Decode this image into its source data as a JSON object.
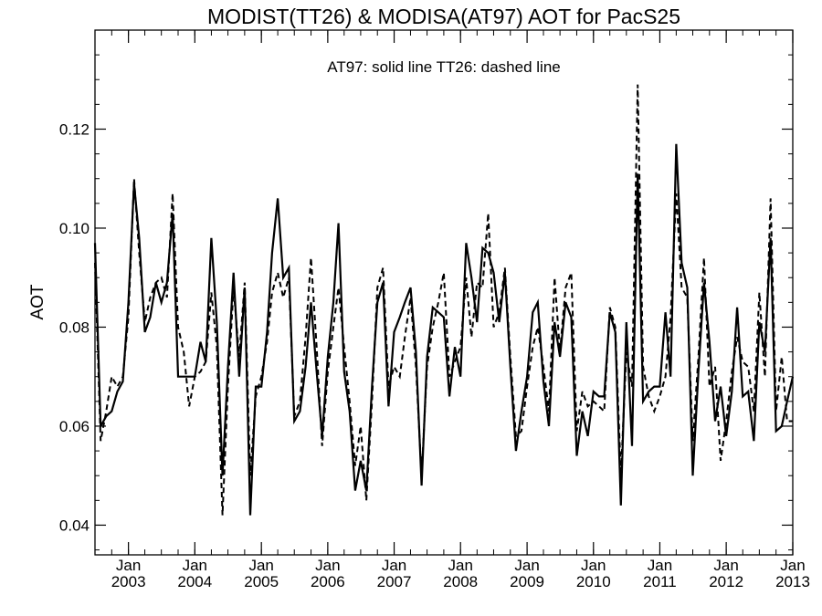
{
  "chart_data": {
    "type": "line",
    "title": "MODIST(TT26) & MODISA(AT97)  AOT for PacS25",
    "annotation": "AT97: solid line   TT26: dashed line",
    "xlabel": "",
    "ylabel": "AOT",
    "xlim": [
      "2002-07-01",
      "2013-01-01"
    ],
    "ylim": [
      0.034,
      0.14
    ],
    "grid": false,
    "y_ticks": [
      "0.04",
      "0.06",
      "0.08",
      "0.10",
      "0.12"
    ],
    "x_ticks": [
      {
        "month": "Jan",
        "year": "2003",
        "date": "2003-01-01"
      },
      {
        "month": "Jan",
        "year": "2004",
        "date": "2004-01-01"
      },
      {
        "month": "Jan",
        "year": "2005",
        "date": "2005-01-01"
      },
      {
        "month": "Jan",
        "year": "2006",
        "date": "2006-01-01"
      },
      {
        "month": "Jan",
        "year": "2007",
        "date": "2007-01-01"
      },
      {
        "month": "Jan",
        "year": "2008",
        "date": "2008-01-01"
      },
      {
        "month": "Jan",
        "year": "2009",
        "date": "2009-01-01"
      },
      {
        "month": "Jan",
        "year": "2010",
        "date": "2010-01-01"
      },
      {
        "month": "Jan",
        "year": "2011",
        "date": "2011-01-01"
      },
      {
        "month": "Jan",
        "year": "2012",
        "date": "2012-01-01"
      },
      {
        "month": "Jan",
        "year": "2013",
        "date": "2013-01-01"
      }
    ],
    "series": [
      {
        "style": "solid",
        "color": "#000000",
        "points": [
          [
            "2002-07-01",
            0.097
          ],
          [
            "2002-08-01",
            0.06
          ],
          [
            "2002-09-01",
            0.062
          ],
          [
            "2002-10-01",
            0.063
          ],
          [
            "2002-11-01",
            0.067
          ],
          [
            "2002-12-01",
            0.069
          ],
          [
            "2003-01-01",
            0.085
          ],
          [
            "2003-02-01",
            0.109
          ],
          [
            "2003-03-01",
            0.098
          ],
          [
            "2003-04-01",
            0.079
          ],
          [
            "2003-05-01",
            0.082
          ],
          [
            "2003-06-01",
            0.089
          ],
          [
            "2003-07-01",
            0.085
          ],
          [
            "2003-08-01",
            0.089
          ],
          [
            "2003-09-01",
            0.103
          ],
          [
            "2003-10-01",
            0.07
          ],
          [
            "2003-11-01",
            0.07
          ],
          [
            "2003-12-01",
            0.07
          ],
          [
            "2004-01-01",
            0.07
          ],
          [
            "2004-02-01",
            0.077
          ],
          [
            "2004-03-01",
            0.073
          ],
          [
            "2004-04-01",
            0.098
          ],
          [
            "2004-05-01",
            0.081
          ],
          [
            "2004-06-01",
            0.05
          ],
          [
            "2004-07-01",
            0.072
          ],
          [
            "2004-08-01",
            0.091
          ],
          [
            "2004-09-01",
            0.07
          ],
          [
            "2004-10-01",
            0.088
          ],
          [
            "2004-11-01",
            0.042
          ],
          [
            "2004-12-01",
            0.068
          ],
          [
            "2005-01-01",
            0.068
          ],
          [
            "2005-02-01",
            0.079
          ],
          [
            "2005-03-01",
            0.095
          ],
          [
            "2005-04-01",
            0.106
          ],
          [
            "2005-05-01",
            0.09
          ],
          [
            "2005-06-01",
            0.092
          ],
          [
            "2005-07-01",
            0.061
          ],
          [
            "2005-08-01",
            0.063
          ],
          [
            "2005-09-01",
            0.072
          ],
          [
            "2005-10-01",
            0.085
          ],
          [
            "2005-11-01",
            0.071
          ],
          [
            "2005-12-01",
            0.058
          ],
          [
            "2006-01-01",
            0.074
          ],
          [
            "2006-02-01",
            0.085
          ],
          [
            "2006-03-01",
            0.101
          ],
          [
            "2006-04-01",
            0.071
          ],
          [
            "2006-05-01",
            0.063
          ],
          [
            "2006-06-01",
            0.047
          ],
          [
            "2006-07-01",
            0.053
          ],
          [
            "2006-08-01",
            0.047
          ],
          [
            "2006-09-01",
            0.068
          ],
          [
            "2006-10-01",
            0.085
          ],
          [
            "2006-11-01",
            0.089
          ],
          [
            "2006-12-01",
            0.064
          ],
          [
            "2007-01-01",
            0.079
          ],
          [
            "2007-02-01",
            0.082
          ],
          [
            "2007-03-01",
            0.085
          ],
          [
            "2007-04-01",
            0.088
          ],
          [
            "2007-05-01",
            0.075
          ],
          [
            "2007-06-01",
            0.048
          ],
          [
            "2007-07-01",
            0.074
          ],
          [
            "2007-08-01",
            0.084
          ],
          [
            "2007-09-01",
            0.083
          ],
          [
            "2007-10-01",
            0.082
          ],
          [
            "2007-11-01",
            0.066
          ],
          [
            "2007-12-01",
            0.076
          ],
          [
            "2008-01-01",
            0.07
          ],
          [
            "2008-02-01",
            0.097
          ],
          [
            "2008-03-01",
            0.09
          ],
          [
            "2008-04-01",
            0.081
          ],
          [
            "2008-05-01",
            0.096
          ],
          [
            "2008-06-01",
            0.095
          ],
          [
            "2008-07-01",
            0.091
          ],
          [
            "2008-08-01",
            0.081
          ],
          [
            "2008-09-01",
            0.091
          ],
          [
            "2008-10-01",
            0.072
          ],
          [
            "2008-11-01",
            0.055
          ],
          [
            "2008-12-01",
            0.063
          ],
          [
            "2009-01-01",
            0.07
          ],
          [
            "2009-02-01",
            0.083
          ],
          [
            "2009-03-01",
            0.085
          ],
          [
            "2009-04-01",
            0.069
          ],
          [
            "2009-05-01",
            0.06
          ],
          [
            "2009-06-01",
            0.081
          ],
          [
            "2009-07-01",
            0.074
          ],
          [
            "2009-08-01",
            0.085
          ],
          [
            "2009-09-01",
            0.082
          ],
          [
            "2009-10-01",
            0.054
          ],
          [
            "2009-11-01",
            0.063
          ],
          [
            "2009-12-01",
            0.058
          ],
          [
            "2010-01-01",
            0.067
          ],
          [
            "2010-02-01",
            0.066
          ],
          [
            "2010-03-01",
            0.066
          ],
          [
            "2010-04-01",
            0.083
          ],
          [
            "2010-05-01",
            0.079
          ],
          [
            "2010-06-01",
            0.044
          ],
          [
            "2010-07-01",
            0.081
          ],
          [
            "2010-08-01",
            0.056
          ],
          [
            "2010-09-01",
            0.111
          ],
          [
            "2010-10-01",
            0.065
          ],
          [
            "2010-11-01",
            0.067
          ],
          [
            "2010-12-01",
            0.068
          ],
          [
            "2011-01-01",
            0.068
          ],
          [
            "2011-02-01",
            0.083
          ],
          [
            "2011-03-01",
            0.07
          ],
          [
            "2011-04-01",
            0.117
          ],
          [
            "2011-05-01",
            0.093
          ],
          [
            "2011-06-01",
            0.088
          ],
          [
            "2011-07-01",
            0.05
          ],
          [
            "2011-08-01",
            0.071
          ],
          [
            "2011-09-01",
            0.089
          ],
          [
            "2011-10-01",
            0.077
          ],
          [
            "2011-11-01",
            0.061
          ],
          [
            "2011-12-01",
            0.068
          ],
          [
            "2012-01-01",
            0.058
          ],
          [
            "2012-02-01",
            0.067
          ],
          [
            "2012-03-01",
            0.084
          ],
          [
            "2012-04-01",
            0.066
          ],
          [
            "2012-05-01",
            0.067
          ],
          [
            "2012-06-01",
            0.057
          ],
          [
            "2012-07-01",
            0.081
          ],
          [
            "2012-08-01",
            0.075
          ],
          [
            "2012-09-01",
            0.098
          ],
          [
            "2012-10-01",
            0.059
          ],
          [
            "2012-11-01",
            0.06
          ],
          [
            "2012-12-01",
            0.065
          ],
          [
            "2013-01-01",
            0.07
          ]
        ]
      },
      {
        "style": "dashed",
        "color": "#000000",
        "points": [
          [
            "2002-07-01",
            0.093
          ],
          [
            "2002-08-01",
            0.057
          ],
          [
            "2002-09-01",
            0.063
          ],
          [
            "2002-10-01",
            0.07
          ],
          [
            "2002-11-01",
            0.068
          ],
          [
            "2002-12-01",
            0.07
          ],
          [
            "2003-01-01",
            0.082
          ],
          [
            "2003-02-01",
            0.11
          ],
          [
            "2003-03-01",
            0.095
          ],
          [
            "2003-04-01",
            0.081
          ],
          [
            "2003-05-01",
            0.086
          ],
          [
            "2003-06-01",
            0.089
          ],
          [
            "2003-07-01",
            0.09
          ],
          [
            "2003-08-01",
            0.086
          ],
          [
            "2003-09-01",
            0.107
          ],
          [
            "2003-10-01",
            0.08
          ],
          [
            "2003-11-01",
            0.075
          ],
          [
            "2003-12-01",
            0.064
          ],
          [
            "2004-01-01",
            0.07
          ],
          [
            "2004-02-01",
            0.071
          ],
          [
            "2004-03-01",
            0.073
          ],
          [
            "2004-04-01",
            0.087
          ],
          [
            "2004-05-01",
            0.076
          ],
          [
            "2004-06-01",
            0.042
          ],
          [
            "2004-07-01",
            0.068
          ],
          [
            "2004-08-01",
            0.088
          ],
          [
            "2004-09-01",
            0.074
          ],
          [
            "2004-10-01",
            0.089
          ],
          [
            "2004-11-01",
            0.05
          ],
          [
            "2004-12-01",
            0.066
          ],
          [
            "2005-01-01",
            0.07
          ],
          [
            "2005-02-01",
            0.077
          ],
          [
            "2005-03-01",
            0.087
          ],
          [
            "2005-04-01",
            0.091
          ],
          [
            "2005-05-01",
            0.086
          ],
          [
            "2005-06-01",
            0.09
          ],
          [
            "2005-07-01",
            0.062
          ],
          [
            "2005-08-01",
            0.065
          ],
          [
            "2005-09-01",
            0.078
          ],
          [
            "2005-10-01",
            0.094
          ],
          [
            "2005-11-01",
            0.076
          ],
          [
            "2005-12-01",
            0.056
          ],
          [
            "2006-01-01",
            0.071
          ],
          [
            "2006-02-01",
            0.08
          ],
          [
            "2006-03-01",
            0.088
          ],
          [
            "2006-04-01",
            0.076
          ],
          [
            "2006-05-01",
            0.065
          ],
          [
            "2006-06-01",
            0.052
          ],
          [
            "2006-07-01",
            0.06
          ],
          [
            "2006-08-01",
            0.045
          ],
          [
            "2006-09-01",
            0.065
          ],
          [
            "2006-10-01",
            0.088
          ],
          [
            "2006-11-01",
            0.092
          ],
          [
            "2006-12-01",
            0.068
          ],
          [
            "2007-01-01",
            0.072
          ],
          [
            "2007-02-01",
            0.07
          ],
          [
            "2007-03-01",
            0.078
          ],
          [
            "2007-04-01",
            0.086
          ],
          [
            "2007-05-01",
            0.072
          ],
          [
            "2007-06-01",
            0.05
          ],
          [
            "2007-07-01",
            0.072
          ],
          [
            "2007-08-01",
            0.08
          ],
          [
            "2007-09-01",
            0.085
          ],
          [
            "2007-10-01",
            0.091
          ],
          [
            "2007-11-01",
            0.07
          ],
          [
            "2007-12-01",
            0.073
          ],
          [
            "2008-01-01",
            0.076
          ],
          [
            "2008-02-01",
            0.09
          ],
          [
            "2008-03-01",
            0.078
          ],
          [
            "2008-04-01",
            0.089
          ],
          [
            "2008-05-01",
            0.088
          ],
          [
            "2008-06-01",
            0.103
          ],
          [
            "2008-07-01",
            0.08
          ],
          [
            "2008-08-01",
            0.083
          ],
          [
            "2008-09-01",
            0.092
          ],
          [
            "2008-10-01",
            0.074
          ],
          [
            "2008-11-01",
            0.058
          ],
          [
            "2008-12-01",
            0.059
          ],
          [
            "2009-01-01",
            0.068
          ],
          [
            "2009-02-01",
            0.076
          ],
          [
            "2009-03-01",
            0.08
          ],
          [
            "2009-04-01",
            0.072
          ],
          [
            "2009-05-01",
            0.063
          ],
          [
            "2009-06-01",
            0.09
          ],
          [
            "2009-07-01",
            0.075
          ],
          [
            "2009-08-01",
            0.088
          ],
          [
            "2009-09-01",
            0.091
          ],
          [
            "2009-10-01",
            0.059
          ],
          [
            "2009-11-01",
            0.067
          ],
          [
            "2009-12-01",
            0.064
          ],
          [
            "2010-01-01",
            0.065
          ],
          [
            "2010-02-01",
            0.064
          ],
          [
            "2010-03-01",
            0.063
          ],
          [
            "2010-04-01",
            0.084
          ],
          [
            "2010-05-01",
            0.08
          ],
          [
            "2010-06-01",
            0.05
          ],
          [
            "2010-07-01",
            0.075
          ],
          [
            "2010-08-01",
            0.068
          ],
          [
            "2010-09-01",
            0.129
          ],
          [
            "2010-10-01",
            0.072
          ],
          [
            "2010-11-01",
            0.066
          ],
          [
            "2010-12-01",
            0.063
          ],
          [
            "2011-01-01",
            0.066
          ],
          [
            "2011-02-01",
            0.07
          ],
          [
            "2011-03-01",
            0.082
          ],
          [
            "2011-04-01",
            0.107
          ],
          [
            "2011-05-01",
            0.088
          ],
          [
            "2011-06-01",
            0.086
          ],
          [
            "2011-07-01",
            0.057
          ],
          [
            "2011-08-01",
            0.074
          ],
          [
            "2011-09-01",
            0.094
          ],
          [
            "2011-10-01",
            0.068
          ],
          [
            "2011-11-01",
            0.072
          ],
          [
            "2011-12-01",
            0.053
          ],
          [
            "2012-01-01",
            0.061
          ],
          [
            "2012-02-01",
            0.071
          ],
          [
            "2012-03-01",
            0.078
          ],
          [
            "2012-04-01",
            0.073
          ],
          [
            "2012-05-01",
            0.072
          ],
          [
            "2012-06-01",
            0.063
          ],
          [
            "2012-07-01",
            0.087
          ],
          [
            "2012-08-01",
            0.07
          ],
          [
            "2012-09-01",
            0.106
          ],
          [
            "2012-10-01",
            0.063
          ],
          [
            "2012-11-01",
            0.074
          ],
          [
            "2012-12-01",
            0.061
          ],
          [
            "2013-01-01",
            0.061
          ]
        ]
      }
    ]
  }
}
